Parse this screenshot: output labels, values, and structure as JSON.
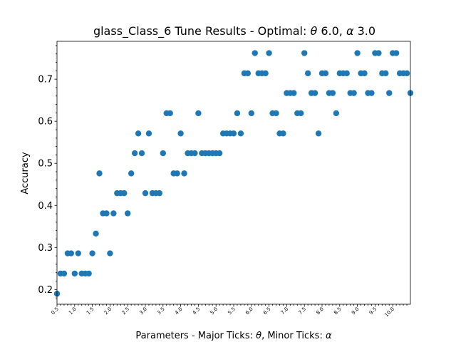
{
  "chart_data": {
    "type": "scatter",
    "title_prefix": "glass_Class_6 Tune Results - Optimal: ",
    "title_theta": "θ",
    "title_theta_value": " 6.0, ",
    "title_alpha": "α",
    "title_alpha_value": " 3.0",
    "xlabel_prefix": "Parameters - Major Ticks: ",
    "xlabel_theta": "θ",
    "xlabel_mid": ", Minor Ticks: ",
    "xlabel_alpha": "α",
    "ylabel": "Accuracy",
    "xlim": [
      0.5,
      10.5
    ],
    "ylim": [
      0.165,
      0.79
    ],
    "x_tick_labels": [
      "0.5",
      "1.0",
      "1.5",
      "2.0",
      "2.5",
      "3.0",
      "3.5",
      "4.0",
      "4.5",
      "5.0",
      "5.5",
      "6.0",
      "6.5",
      "7.0",
      "7.5",
      "8.0",
      "8.5",
      "9.0",
      "9.5",
      "10.0"
    ],
    "y_ticks": [
      0.2,
      0.3,
      0.4,
      0.5,
      0.6,
      0.7
    ],
    "y_tick_labels": [
      "0.2",
      "0.3",
      "0.4",
      "0.5",
      "0.6",
      "0.7"
    ],
    "color": "#1f77b4",
    "x": [
      0.5,
      0.6,
      0.7,
      0.8,
      0.9,
      1.0,
      1.1,
      1.2,
      1.3,
      1.4,
      1.5,
      1.6,
      1.7,
      1.8,
      1.9,
      2.0,
      2.1,
      2.2,
      2.3,
      2.4,
      2.5,
      2.6,
      2.7,
      2.8,
      2.9,
      3.0,
      3.1,
      3.2,
      3.3,
      3.4,
      3.5,
      3.6,
      3.7,
      3.8,
      3.9,
      4.0,
      4.1,
      4.2,
      4.3,
      4.4,
      4.5,
      4.6,
      4.7,
      4.8,
      4.9,
      5.0,
      5.1,
      5.2,
      5.3,
      5.4,
      5.5,
      5.6,
      5.7,
      5.8,
      5.9,
      6.0,
      6.1,
      6.2,
      6.3,
      6.4,
      6.5,
      6.6,
      6.7,
      6.8,
      6.9,
      7.0,
      7.1,
      7.2,
      7.3,
      7.4,
      7.5,
      7.6,
      7.7,
      7.8,
      7.9,
      8.0,
      8.1,
      8.2,
      8.3,
      8.4,
      8.5,
      8.6,
      8.7,
      8.8,
      8.9,
      9.0,
      9.1,
      9.2,
      9.3,
      9.4,
      9.5,
      9.6,
      9.7,
      9.8,
      9.9,
      10.0,
      10.1,
      10.2,
      10.3,
      10.4,
      10.5
    ],
    "y": [
      0.19,
      0.238,
      0.238,
      0.286,
      0.286,
      0.238,
      0.286,
      0.238,
      0.238,
      0.238,
      0.286,
      0.333,
      0.476,
      0.381,
      0.381,
      0.286,
      0.381,
      0.429,
      0.429,
      0.429,
      0.381,
      0.476,
      0.524,
      0.571,
      0.524,
      0.429,
      0.571,
      0.429,
      0.429,
      0.429,
      0.524,
      0.619,
      0.619,
      0.476,
      0.476,
      0.571,
      0.476,
      0.524,
      0.524,
      0.524,
      0.619,
      0.524,
      0.524,
      0.524,
      0.524,
      0.524,
      0.524,
      0.571,
      0.571,
      0.571,
      0.571,
      0.619,
      0.571,
      0.714,
      0.714,
      0.619,
      0.762,
      0.714,
      0.714,
      0.714,
      0.762,
      0.619,
      0.619,
      0.571,
      0.571,
      0.667,
      0.667,
      0.667,
      0.619,
      0.619,
      0.762,
      0.714,
      0.667,
      0.667,
      0.571,
      0.714,
      0.714,
      0.667,
      0.667,
      0.619,
      0.714,
      0.714,
      0.714,
      0.667,
      0.667,
      0.762,
      0.714,
      0.714,
      0.667,
      0.667,
      0.762,
      0.762,
      0.714,
      0.714,
      0.667,
      0.762,
      0.762,
      0.714,
      0.714,
      0.714,
      0.667
    ]
  }
}
